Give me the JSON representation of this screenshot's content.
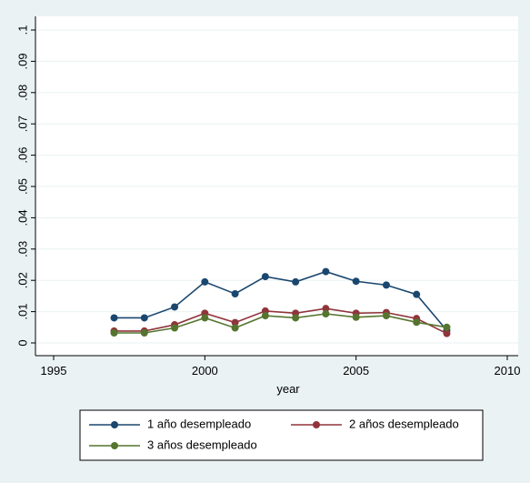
{
  "chart_data": {
    "type": "line",
    "title": "",
    "xlabel": "year",
    "ylabel": "",
    "xlim": [
      1995,
      2010
    ],
    "ylim": [
      0,
      0.1
    ],
    "x_ticks": [
      1995,
      2000,
      2005,
      2010
    ],
    "x_tick_labels": [
      "1995",
      "2000",
      "2005",
      "2010"
    ],
    "y_ticks": [
      0,
      0.01,
      0.02,
      0.03,
      0.04,
      0.05,
      0.06,
      0.07,
      0.08,
      0.09,
      0.1
    ],
    "y_tick_labels": [
      "0",
      ".01",
      ".02",
      ".03",
      ".04",
      ".05",
      ".06",
      ".07",
      ".08",
      ".09",
      ".1"
    ],
    "grid": true,
    "legend_position": "bottom",
    "x": [
      1997,
      1998,
      1999,
      2000,
      2001,
      2002,
      2003,
      2004,
      2005,
      2006,
      2007,
      2008
    ],
    "series": [
      {
        "name": "1 año desempleado",
        "color": "#1a476f",
        "values": [
          0.008,
          0.008,
          0.0115,
          0.0195,
          0.0157,
          0.0212,
          0.0195,
          0.0228,
          0.0197,
          0.0185,
          0.0155,
          0.004
        ]
      },
      {
        "name": "2 años desempleado",
        "color": "#90353b",
        "values": [
          0.0038,
          0.0038,
          0.0058,
          0.0095,
          0.0065,
          0.0102,
          0.0095,
          0.011,
          0.0095,
          0.0097,
          0.0078,
          0.003
        ]
      },
      {
        "name": "3 años desempleado",
        "color": "#55752f",
        "values": [
          0.0032,
          0.0032,
          0.0048,
          0.008,
          0.0048,
          0.0087,
          0.008,
          0.0093,
          0.0082,
          0.0087,
          0.0066,
          0.005
        ]
      }
    ]
  }
}
